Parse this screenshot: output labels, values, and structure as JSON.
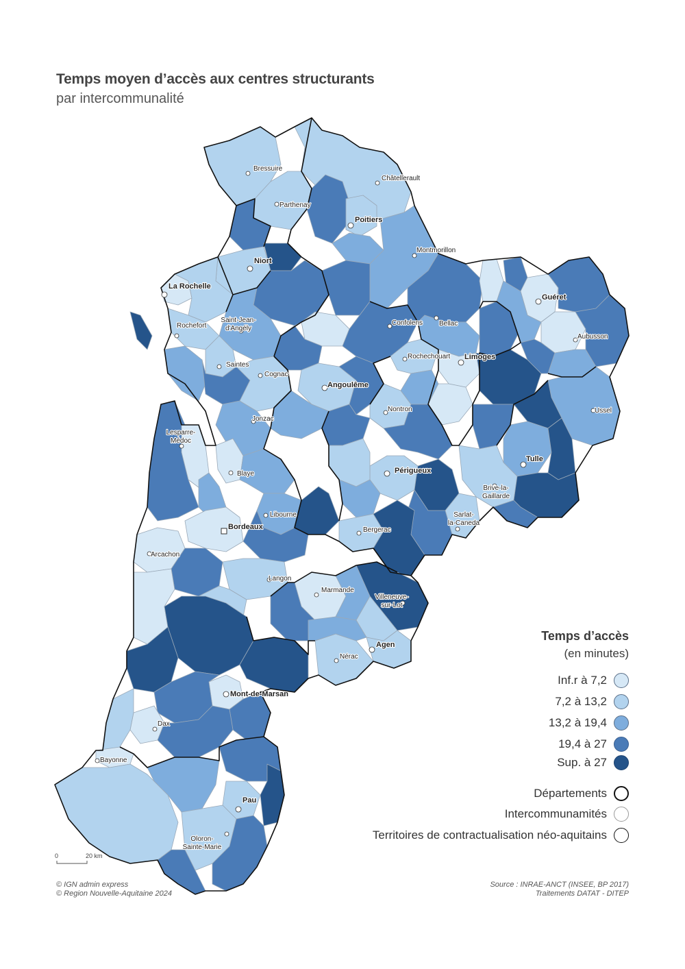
{
  "title": "Temps moyen d’accès aux centres structurants",
  "subtitle": "par intercommunalité",
  "legend": {
    "title": "Temps d’accès",
    "subtitle": "(en minutes)",
    "classes": [
      {
        "label": "Inf.r à 7,2",
        "color": "#d6e8f6"
      },
      {
        "label": "7,2 à 13,2",
        "color": "#b2d3ee"
      },
      {
        "label": "13,2 à 19,4",
        "color": "#7eaddd"
      },
      {
        "label": "19,4 à 27",
        "color": "#4a7bb7"
      },
      {
        "label": "Sup. à 27",
        "color": "#25548a"
      }
    ],
    "boundaries": [
      {
        "label": "Départements",
        "style": "thick-black"
      },
      {
        "label": "Intercommunamités",
        "style": "thin-grey"
      },
      {
        "label": "Territoires de contractualisation néo-aquitains",
        "style": "black"
      }
    ]
  },
  "cities": [
    {
      "name": "Bressuire",
      "big": false
    },
    {
      "name": "Châtellerault",
      "big": false
    },
    {
      "name": "Parthenay",
      "big": false
    },
    {
      "name": "Poitiers",
      "big": true
    },
    {
      "name": "Montmorillon",
      "big": false
    },
    {
      "name": "Niort",
      "big": true
    },
    {
      "name": "La Rochelle",
      "big": true
    },
    {
      "name": "Guéret",
      "big": true
    },
    {
      "name": "Bellac",
      "big": false
    },
    {
      "name": "Saint-Jean-d'Angély",
      "big": false
    },
    {
      "name": "Confolens",
      "big": false
    },
    {
      "name": "Rochefort",
      "big": false
    },
    {
      "name": "Aubusson",
      "big": false
    },
    {
      "name": "Rochechouart",
      "big": false
    },
    {
      "name": "Limoges",
      "big": true
    },
    {
      "name": "Saintes",
      "big": false
    },
    {
      "name": "Cognac",
      "big": false
    },
    {
      "name": "Angoulême",
      "big": true
    },
    {
      "name": "Ussel",
      "big": false
    },
    {
      "name": "Nontron",
      "big": false
    },
    {
      "name": "Jonzac",
      "big": false
    },
    {
      "name": "Lesparre-Médoc",
      "big": false
    },
    {
      "name": "Tulle",
      "big": true
    },
    {
      "name": "Blaye",
      "big": false
    },
    {
      "name": "Périgueux",
      "big": true
    },
    {
      "name": "Brive-la-Gaillarde",
      "big": false
    },
    {
      "name": "Libourne",
      "big": false
    },
    {
      "name": "Sarlat-la-Canéda",
      "big": false
    },
    {
      "name": "Bordeaux",
      "big": true
    },
    {
      "name": "Bergerac",
      "big": false
    },
    {
      "name": "Arcachon",
      "big": false
    },
    {
      "name": "Langon",
      "big": false
    },
    {
      "name": "Marmande",
      "big": false
    },
    {
      "name": "Villeneuve-sur-Lot",
      "big": false
    },
    {
      "name": "Agen",
      "big": true
    },
    {
      "name": "Nérac",
      "big": false
    },
    {
      "name": "Mont-de-Marsan",
      "big": true
    },
    {
      "name": "Dax",
      "big": false
    },
    {
      "name": "Bayonne",
      "big": false
    },
    {
      "name": "Pau",
      "big": true
    },
    {
      "name": "Oloron-Sainte-Marie",
      "big": false
    }
  ],
  "scale": {
    "start": "0",
    "end": "20 km"
  },
  "credits_left": [
    "© IGN admin express",
    "© Region Nouvelle-Aquitaine 2024"
  ],
  "credits_right": [
    "Source : INRAE-ANCT (INSEE, BP 2017)",
    "Traitements DATAT - DITEP"
  ]
}
